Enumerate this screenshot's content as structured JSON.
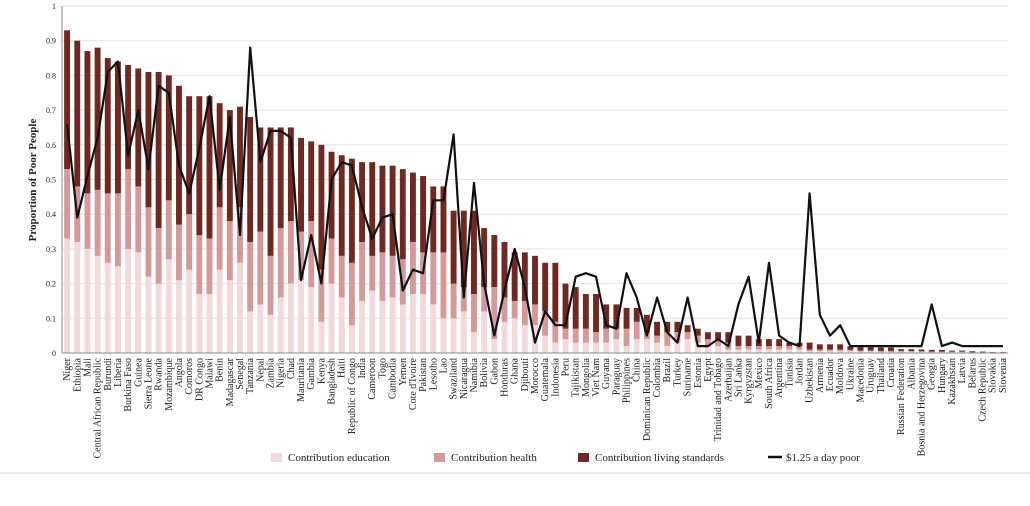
{
  "chart_data": {
    "type": "bar",
    "stacked": true,
    "ylabel": "Proportion of  Poor People",
    "xlabel": "",
    "ylim": [
      0,
      1
    ],
    "yticks": [
      "0",
      "0.1",
      "0.2",
      "0.3",
      "0.4",
      "0.5",
      "0.6",
      "0.7",
      "0.8",
      "0.9",
      "1"
    ],
    "grid": "horizontal",
    "legend_position": "bottom",
    "categories": [
      "Niger",
      "Ethiopia",
      "Mali",
      "Central African Republic",
      "Burundi",
      "Liberia",
      "Burkina Faso",
      "Guinea",
      "Sierra Leone",
      "Rwanda",
      "Mozambique",
      "Angola",
      "Comoros",
      "DR Congo",
      "Malawi",
      "Benin",
      "Madagascar",
      "Senegal",
      "Tanzania",
      "Nepal",
      "Zambia",
      "Nigeria",
      "Chad",
      "Mauritania",
      "Gambia",
      "Kenya",
      "Bangladesh",
      "Haiti",
      "Republic of Congo",
      "India",
      "Cameroon",
      "Togo",
      "Cambodia",
      "Yemen",
      "Cote d'Ivoire",
      "Pakistan",
      "Lesotho",
      "Lao",
      "Swaziland",
      "Nicaragua",
      "Namibia",
      "Bolivia",
      "Gabon",
      "Honduras",
      "Ghana",
      "Djibouti",
      "Morocco",
      "Guatemala",
      "Indonesia",
      "Peru",
      "Tajikistan",
      "Mongolia",
      "Viet Nam",
      "Guyana",
      "Paraguay",
      "Philippines",
      "China",
      "Dominican Republic",
      "Colombia",
      "Brazil",
      "Turkey",
      "Suriname",
      "Estonia",
      "Egypt",
      "Trinidad and Tobago",
      "Azerbaijan",
      "Sri Lanka",
      "Kyrgyzstan",
      "Mexico",
      "South Africa",
      "Argentina",
      "Tunisia",
      "Jordan",
      "Uzbekistan",
      "Armenia",
      "Ecuador",
      "Moldova",
      "Ukraine",
      "Macedonia",
      "Uruguay",
      "Thailand",
      "Croatia",
      "Russian Federation",
      "Albania",
      "Bosnia and Herzegovina",
      "Georgia",
      "Hungary",
      "Kazakhstan",
      "Latvia",
      "Belarus",
      "Czech Republic",
      "Slovakia",
      "Slovenia"
    ],
    "series": [
      {
        "name": "Contribution education",
        "color": "#f2d9db",
        "values": [
          0.33,
          0.32,
          0.3,
          0.28,
          0.26,
          0.25,
          0.3,
          0.29,
          0.22,
          0.2,
          0.27,
          0.21,
          0.24,
          0.17,
          0.17,
          0.24,
          0.21,
          0.26,
          0.12,
          0.14,
          0.11,
          0.16,
          0.2,
          0.21,
          0.19,
          0.09,
          0.2,
          0.16,
          0.08,
          0.15,
          0.18,
          0.15,
          0.16,
          0.14,
          0.17,
          0.17,
          0.14,
          0.1,
          0.1,
          0.12,
          0.06,
          0.12,
          0.04,
          0.09,
          0.1,
          0.08,
          0.08,
          0.05,
          0.03,
          0.04,
          0.03,
          0.03,
          0.03,
          0.03,
          0.04,
          0.02,
          0.04,
          0.04,
          0.03,
          0.02,
          0.03,
          0.04,
          0.03,
          0.02,
          0.02,
          0.01,
          0.01,
          0.01,
          0.01,
          0.01,
          0.01,
          0.01,
          0.01,
          0.005,
          0.005,
          0.005,
          0.005,
          0.005,
          0.004,
          0.004,
          0.003,
          0.003,
          0.003,
          0.003,
          0.003,
          0.002,
          0.002,
          0.002,
          0.002,
          0.001,
          0.001,
          0.001,
          0.001
        ]
      },
      {
        "name": "Contribution health",
        "color": "#d49a9a",
        "values": [
          0.2,
          0.16,
          0.16,
          0.19,
          0.2,
          0.21,
          0.23,
          0.19,
          0.2,
          0.16,
          0.17,
          0.16,
          0.16,
          0.17,
          0.16,
          0.18,
          0.17,
          0.16,
          0.2,
          0.21,
          0.17,
          0.2,
          0.18,
          0.14,
          0.19,
          0.15,
          0.13,
          0.12,
          0.18,
          0.17,
          0.1,
          0.14,
          0.12,
          0.13,
          0.15,
          0.12,
          0.15,
          0.19,
          0.1,
          0.07,
          0.11,
          0.07,
          0.15,
          0.07,
          0.05,
          0.07,
          0.06,
          0.07,
          0.06,
          0.03,
          0.04,
          0.04,
          0.03,
          0.04,
          0.03,
          0.05,
          0.05,
          0.02,
          0.02,
          0.04,
          0.03,
          0.02,
          0.02,
          0.02,
          0.02,
          0.02,
          0.01,
          0.01,
          0.01,
          0.01,
          0.01,
          0.01,
          0.01,
          0.005,
          0.005,
          0.005,
          0.005,
          0.004,
          0.003,
          0.003,
          0.003,
          0.003,
          0.003,
          0.003,
          0.002,
          0.002,
          0.002,
          0.002,
          0.002,
          0.001,
          0.001,
          0.001,
          0.001
        ]
      },
      {
        "name": "Contribution living standards",
        "color": "#6e2a22",
        "values": [
          0.4,
          0.42,
          0.41,
          0.41,
          0.39,
          0.38,
          0.3,
          0.34,
          0.39,
          0.45,
          0.36,
          0.4,
          0.34,
          0.4,
          0.41,
          0.3,
          0.32,
          0.29,
          0.36,
          0.3,
          0.37,
          0.29,
          0.27,
          0.27,
          0.23,
          0.36,
          0.25,
          0.29,
          0.3,
          0.23,
          0.27,
          0.25,
          0.26,
          0.26,
          0.2,
          0.22,
          0.19,
          0.19,
          0.21,
          0.22,
          0.24,
          0.17,
          0.15,
          0.16,
          0.14,
          0.14,
          0.14,
          0.14,
          0.17,
          0.13,
          0.12,
          0.1,
          0.11,
          0.07,
          0.07,
          0.06,
          0.04,
          0.05,
          0.04,
          0.03,
          0.03,
          0.02,
          0.02,
          0.02,
          0.02,
          0.03,
          0.03,
          0.03,
          0.02,
          0.02,
          0.02,
          0.01,
          0.01,
          0.02,
          0.015,
          0.015,
          0.015,
          0.01,
          0.01,
          0.01,
          0.01,
          0.01,
          0.005,
          0.005,
          0.005,
          0.005,
          0.005,
          0.003,
          0.003,
          0.003,
          0.002,
          0.001,
          0.001
        ]
      }
    ],
    "line": {
      "name": "$1.25 a day poor",
      "color": "#111111",
      "values": [
        0.66,
        0.39,
        0.51,
        0.62,
        0.81,
        0.84,
        0.57,
        0.7,
        0.53,
        0.77,
        0.75,
        0.54,
        0.46,
        0.59,
        0.74,
        0.47,
        0.68,
        0.34,
        0.88,
        0.55,
        0.64,
        0.64,
        0.62,
        0.21,
        0.34,
        0.2,
        0.5,
        0.55,
        0.54,
        0.42,
        0.33,
        0.39,
        0.4,
        0.18,
        0.24,
        0.23,
        0.44,
        0.44,
        0.63,
        0.16,
        0.49,
        0.2,
        0.05,
        0.18,
        0.3,
        0.19,
        0.03,
        0.12,
        0.08,
        0.08,
        0.22,
        0.23,
        0.22,
        0.08,
        0.07,
        0.23,
        0.16,
        0.05,
        0.16,
        0.06,
        0.03,
        0.16,
        0.02,
        0.02,
        0.04,
        0.02,
        0.14,
        0.22,
        0.03,
        0.26,
        0.05,
        0.03,
        0.02,
        0.46,
        0.11,
        0.05,
        0.08,
        0.02,
        0.02,
        0.02,
        0.02,
        0.02,
        0.02,
        0.02,
        0.02,
        0.14,
        0.02,
        0.03,
        0.02,
        0.02,
        0.02,
        0.02,
        0.02
      ]
    }
  }
}
